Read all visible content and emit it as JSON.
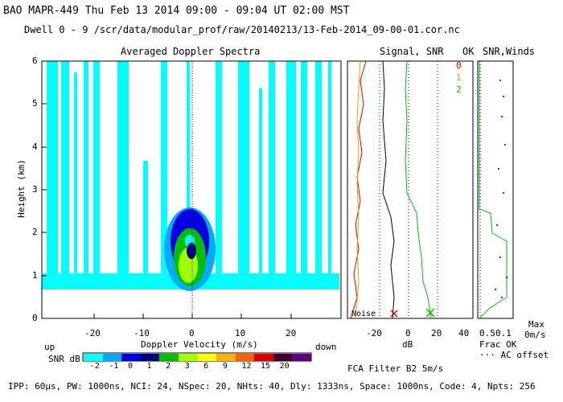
{
  "header": {
    "line1": "BAO  MAPR-449  Thu Feb 13 2014 09:00 - 09:04 UT 02:00 MST",
    "line2": "Dwell  0 - 9   /scr/data/modular_prof/raw/20140213/13-Feb-2014_09-00-01.cor.nc"
  },
  "panels": {
    "spectra_title": "Averaged Doppler Spectra",
    "signal_title": "Signal, SNR",
    "ok_title": "OK",
    "winds_title": "SNR,Winds"
  },
  "axes": {
    "y_label": "Height (km)",
    "y_ticks": [
      "0",
      "1",
      "2",
      "3",
      "4",
      "5",
      "6"
    ],
    "x_label": "Doppler Velocity (m/s)",
    "x_ticks": [
      "-20",
      "-10",
      "0",
      "10",
      "20"
    ],
    "x_left_word": "up",
    "x_right_word": "down",
    "db_ticks": [
      "-20",
      "0",
      "20",
      "40"
    ],
    "db_label": "dB",
    "winds_ticks": [
      "0.5",
      "0.1"
    ],
    "frac_ok": "Frac OK",
    "ac_offset": "··· AC offset",
    "max_label": "Max",
    "speed_label": "0m/s",
    "noise_label": "Noise"
  },
  "ok_legend": [
    {
      "text": "0",
      "color": "#e00000"
    },
    {
      "text": "1",
      "color": "#e0a000"
    },
    {
      "text": "2",
      "color": "#00c000"
    }
  ],
  "snr_scale": {
    "label": "SNR dB",
    "ticks": [
      "-2",
      "-1",
      "0",
      "1",
      "2",
      "3",
      "6",
      "9",
      "12",
      "15",
      "20"
    ],
    "colors": [
      "#00ffff",
      "#00aaff",
      "#0000e0",
      "#000080",
      "#00c000",
      "#a0ff00",
      "#ffff00",
      "#ffb000",
      "#ff6000",
      "#e00000",
      "#400030",
      "#600080"
    ]
  },
  "filter_text": "FCA Filter B2  5m/s",
  "footer": "IPP: 60μs, PW: 1000ns, NCI: 24, NSpec: 20, NHts: 40, Dly: 1333ns, Space: 1000ns, Code: 4, Npts: 256"
}
